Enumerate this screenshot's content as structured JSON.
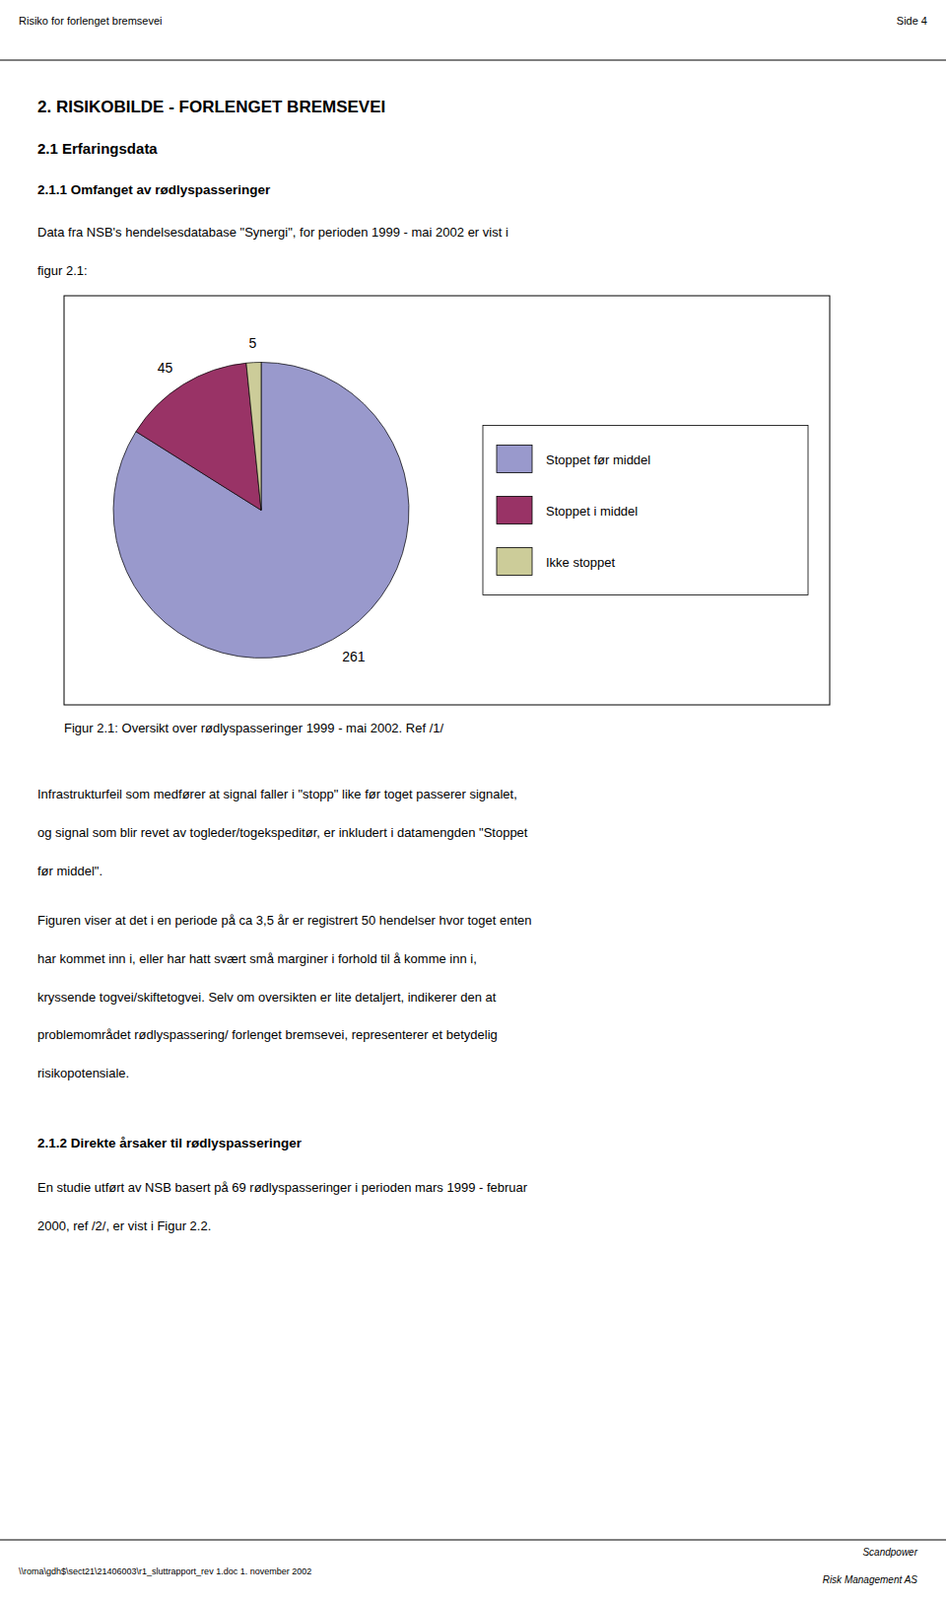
{
  "chart_data": {
    "type": "pie",
    "title": "Figur 2.1:    Oversikt over rødlyspasseringer 1999 - mai 2002.  Ref /1/",
    "categories": [
      "Stoppet før middel",
      "Stoppet i middel",
      "Ikke stoppet"
    ],
    "values": [
      261,
      45,
      5
    ],
    "colors": [
      "#9999cc",
      "#993366",
      "#cccc99"
    ],
    "data_labels": true,
    "legend": "right"
  },
  "page": {
    "header_left": "Risiko for forlenget bremsevei",
    "header_right": "Side 4",
    "section_title": "2.   RISIKOBILDE - FORLENGET BREMSEVEI",
    "subsection_1": "2.1  Erfaringsdata",
    "subsection_1_1": "2.1.1  Omfanget av rødlyspasseringer",
    "para1": [
      "Data fra NSB's hendelsesdatabase \"Synergi\", for perioden 1999 - mai 2002 er vist i",
      "figur 2.1:"
    ],
    "para2": [
      "Infrastrukturfeil som medfører at signal faller i \"stopp\" like før toget passerer signalet,",
      "og signal som blir revet av togleder/togekspeditør, er inkludert i datamengden \"Stoppet",
      "før middel\"."
    ],
    "para3": [
      "Figuren viser at det i en periode på ca 3,5 år er registrert 50 hendelser hvor toget enten",
      "har kommet inn i, eller har hatt svært små marginer i forhold til å komme inn i,",
      "kryssende togvei/skiftetogvei. Selv om oversikten er lite detaljert, indikerer den at",
      "problemområdet rødlyspassering/ forlenget bremsevei, representerer et betydelig",
      "risikopotensiale."
    ],
    "subsection_1_2": "2.1.2  Direkte årsaker til rødlyspasseringer",
    "para4": [
      "En studie utført av NSB basert på 69 rødlyspasseringer i perioden mars 1999 - februar",
      "2000, ref /2/, er vist i Figur 2.2."
    ],
    "footer_left": "\\\\roma\\gdh$\\sect21\\21406003\\r1_sluttrapport_rev 1.doc  1. november 2002",
    "footer_right_top": "Scandpower",
    "footer_right_bottom": "Risk Management AS"
  }
}
